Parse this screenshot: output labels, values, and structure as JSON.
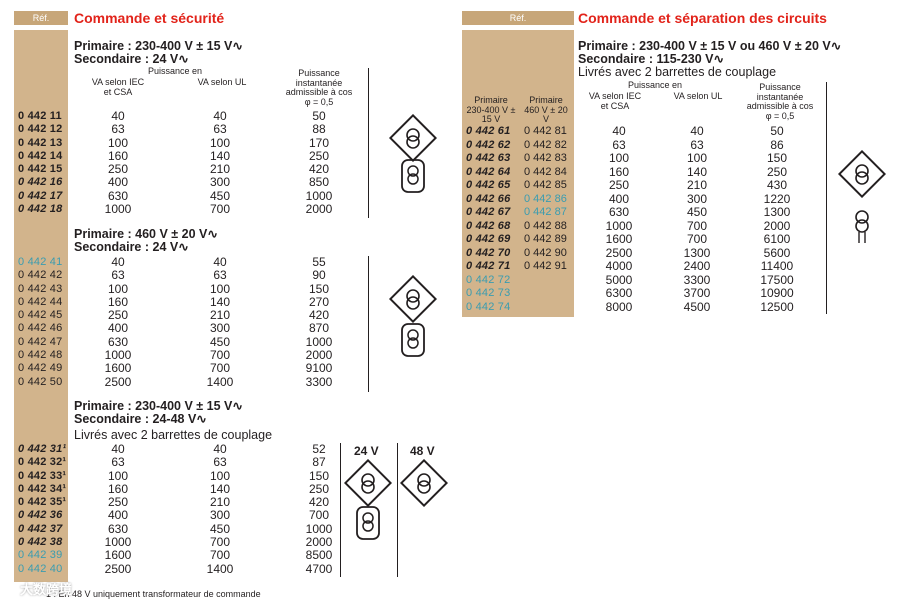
{
  "left": {
    "ref_label": "Réf.",
    "title": "Commande et sécurité",
    "section1": {
      "primaire": "Primaire : 230-400 V ± 15 V∿",
      "secondaire": "Secondaire : 24 V∿",
      "headers": {
        "puissance_en": "Puissance en",
        "va_iec": "VA selon IEC et CSA",
        "va_ul": "VA selon UL",
        "inst": "Puissance instantanée admissible à cos φ = 0,5"
      },
      "rows": [
        {
          "ref": "0 442 11",
          "a": "40",
          "b": "40",
          "c": "50"
        },
        {
          "ref": "0 442 12",
          "a": "63",
          "b": "63",
          "c": "88"
        },
        {
          "ref": "0 442 13",
          "a": "100",
          "b": "100",
          "c": "170"
        },
        {
          "ref": "0 442 14",
          "a": "160",
          "b": "140",
          "c": "250"
        },
        {
          "ref": "0 442 15",
          "a": "250",
          "b": "210",
          "c": "420"
        },
        {
          "ref": "0 442 16",
          "a": "400",
          "b": "300",
          "c": "850"
        },
        {
          "ref": "0 442 17",
          "a": "630",
          "b": "450",
          "c": "1000"
        },
        {
          "ref": "0 442 18",
          "a": "1000",
          "b": "700",
          "c": "2000"
        }
      ]
    },
    "section2": {
      "primaire": "Primaire : 460 V ± 20 V∿",
      "secondaire": "Secondaire : 24 V∿",
      "rows": [
        {
          "ref": "0 442 41",
          "a": "40",
          "b": "40",
          "c": "55"
        },
        {
          "ref": "0 442 42",
          "a": "63",
          "b": "63",
          "c": "90"
        },
        {
          "ref": "0 442 43",
          "a": "100",
          "b": "100",
          "c": "150"
        },
        {
          "ref": "0 442 44",
          "a": "160",
          "b": "140",
          "c": "270"
        },
        {
          "ref": "0 442 45",
          "a": "250",
          "b": "210",
          "c": "420"
        },
        {
          "ref": "0 442 46",
          "a": "400",
          "b": "300",
          "c": "870"
        },
        {
          "ref": "0 442 47",
          "a": "630",
          "b": "450",
          "c": "1000"
        },
        {
          "ref": "0 442 48",
          "a": "1000",
          "b": "700",
          "c": "2000"
        },
        {
          "ref": "0 442 49",
          "a": "1600",
          "b": "700",
          "c": "9100"
        },
        {
          "ref": "0 442 50",
          "a": "2500",
          "b": "1400",
          "c": "3300"
        }
      ]
    },
    "section3": {
      "primaire": "Primaire : 230-400 V ± 15 V∿",
      "secondaire": "Secondaire : 24-48 V∿",
      "note": "Livrés avec 2 barrettes de couplage",
      "volt_24": "24 V",
      "volt_48": "48 V",
      "rows": [
        {
          "ref": "0 442 31¹",
          "a": "40",
          "b": "40",
          "c": "52"
        },
        {
          "ref": "0 442 32¹",
          "a": "63",
          "b": "63",
          "c": "87"
        },
        {
          "ref": "0 442 33¹",
          "a": "100",
          "b": "100",
          "c": "150"
        },
        {
          "ref": "0 442 34¹",
          "a": "160",
          "b": "140",
          "c": "250"
        },
        {
          "ref": "0 442 35¹",
          "a": "250",
          "b": "210",
          "c": "420"
        },
        {
          "ref": "0 442 36",
          "a": "400",
          "b": "300",
          "c": "700"
        },
        {
          "ref": "0 442 37",
          "a": "630",
          "b": "450",
          "c": "1000"
        },
        {
          "ref": "0 442 38",
          "a": "1000",
          "b": "700",
          "c": "2000"
        },
        {
          "ref": "0 442 39",
          "a": "1600",
          "b": "700",
          "c": "8500"
        },
        {
          "ref": "0 442 40",
          "a": "2500",
          "b": "1400",
          "c": "4700"
        }
      ]
    },
    "footnote": "1 : En 48 V uniquement transformateur de commande"
  },
  "right": {
    "ref_label": "Réf.",
    "title": "Commande et séparation des circuits",
    "primaire": "Primaire : 230-400 V ± 15 V ou 460 V ± 20 V∿",
    "secondaire": "Secondaire : 115-230 V∿",
    "note": "Livrés avec 2 barrettes de couplage",
    "col_a_head": "Primaire 230-400 V ± 15 V",
    "col_b_head": "Primaire 460 V ± 20 V",
    "headers": {
      "puissance_en": "Puissance en",
      "va_iec": "VA selon IEC et CSA",
      "va_ul": "VA selon UL",
      "inst": "Puissance instantanée admissible à cos φ = 0,5"
    },
    "rows": [
      {
        "r1": "0 442 61",
        "r2": "0 442 81",
        "a": "40",
        "b": "40",
        "c": "50"
      },
      {
        "r1": "0 442 62",
        "r2": "0 442 82",
        "a": "63",
        "b": "63",
        "c": "86"
      },
      {
        "r1": "0 442 63",
        "r2": "0 442 83",
        "a": "100",
        "b": "100",
        "c": "150"
      },
      {
        "r1": "0 442 64",
        "r2": "0 442 84",
        "a": "160",
        "b": "140",
        "c": "250"
      },
      {
        "r1": "0 442 65",
        "r2": "0 442 85",
        "a": "250",
        "b": "210",
        "c": "430"
      },
      {
        "r1": "0 442 66",
        "r2": "0 442 86",
        "a": "400",
        "b": "300",
        "c": "1220"
      },
      {
        "r1": "0 442 67",
        "r2": "0 442 87",
        "a": "630",
        "b": "450",
        "c": "1300"
      },
      {
        "r1": "0 442 68",
        "r2": "0 442 88",
        "a": "1000",
        "b": "700",
        "c": "2000"
      },
      {
        "r1": "0 442 69",
        "r2": "0 442 89",
        "a": "1600",
        "b": "700",
        "c": "6100"
      },
      {
        "r1": "0 442 70",
        "r2": "0 442 90",
        "a": "2500",
        "b": "1300",
        "c": "5600"
      },
      {
        "r1": "0 442 71",
        "r2": "0 442 91",
        "a": "4000",
        "b": "2400",
        "c": "11400"
      },
      {
        "r1": "0 442 72",
        "r2": "",
        "a": "5000",
        "b": "3300",
        "c": "17500"
      },
      {
        "r1": "0 442 73",
        "r2": "",
        "a": "6300",
        "b": "3700",
        "c": "10900"
      },
      {
        "r1": "0 442 74",
        "r2": "",
        "a": "8000",
        "b": "4500",
        "c": "12500"
      }
    ]
  },
  "watermark": "大数跨境",
  "colors": {
    "title_red": "#e2231a",
    "ref_tan": "#d2b48c",
    "ref_blue": "#3a9cb0"
  }
}
